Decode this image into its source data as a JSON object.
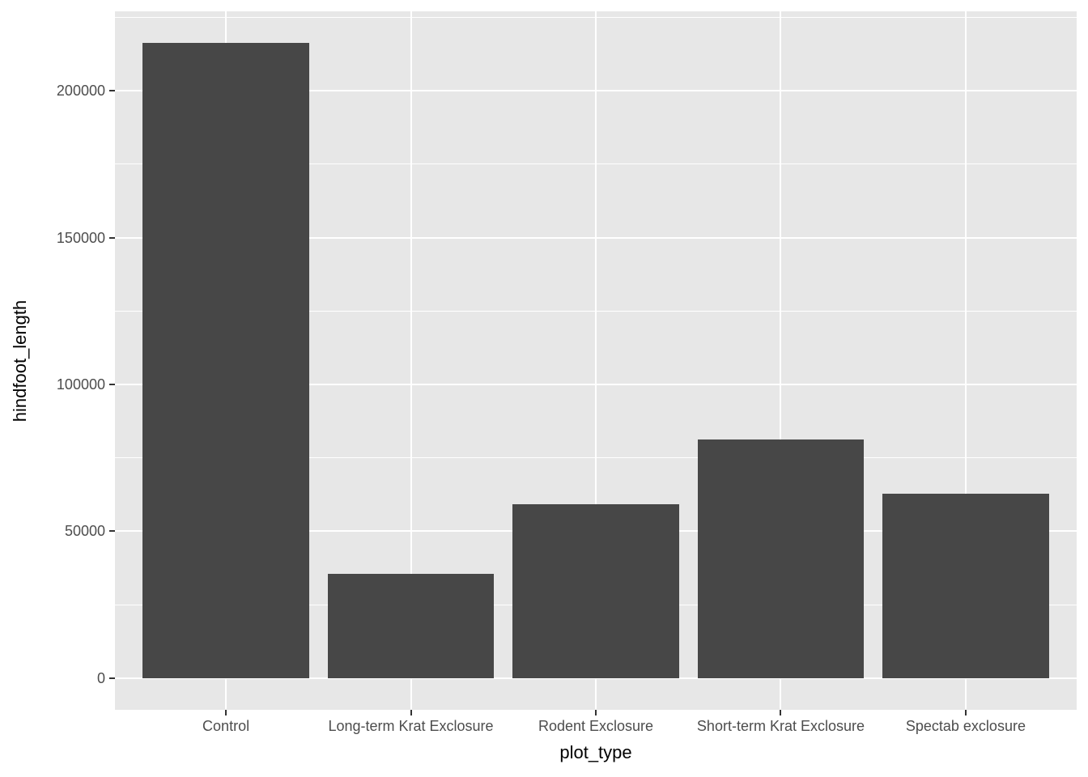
{
  "chart_data": {
    "type": "bar",
    "title": "",
    "xlabel": "plot_type",
    "ylabel": "hindfoot_length",
    "categories": [
      "Control",
      "Long-term Krat Exclosure",
      "Rodent Exclosure",
      "Short-term Krat Exclosure",
      "Spectab exclosure"
    ],
    "values": [
      216250,
      35500,
      59200,
      81300,
      62800
    ],
    "ylim": [
      -10812,
      227062
    ],
    "y_major_ticks": [
      0,
      50000,
      100000,
      150000,
      200000
    ],
    "y_major_tick_labels": [
      "0",
      "50000",
      "100000",
      "150000",
      "200000"
    ],
    "y_minor_ticks": [
      25000,
      75000,
      125000,
      175000,
      225000
    ],
    "grid": "major-and-minor-horizontal, major-vertical",
    "legend": "none",
    "style": "ggplot2-grey-theme",
    "bar_width_band_fraction": 0.9,
    "colors": {
      "bar_fill": "#474747",
      "panel_bg": "#E7E7E7",
      "grid": "#FFFFFF",
      "tick_label": "#4D4D4D",
      "axis_title": "#000000",
      "tick_mark": "#333333",
      "page_bg": "#FFFFFF"
    }
  }
}
